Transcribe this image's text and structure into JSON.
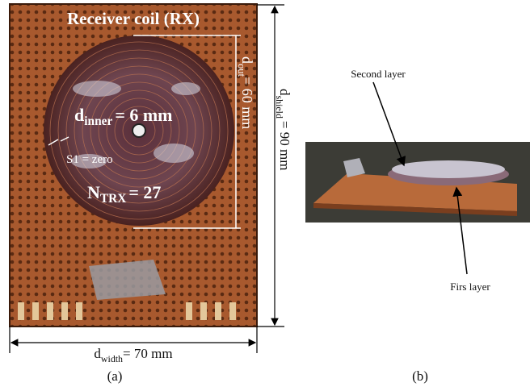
{
  "panel_a": {
    "title": "Receiver coil (RX)",
    "d_inner": {
      "symbol": "d",
      "subscript": "inner",
      "value": "= 6 mm"
    },
    "s1": "S1 = zero",
    "n_trx": {
      "symbol": "N",
      "subscript": "TRX",
      "value": "= 27"
    },
    "d_out": {
      "symbol": "d",
      "subscript": "out",
      "value": "= 60 mm"
    },
    "d_shield": {
      "symbol": "d",
      "subscript": "shield",
      "value": "= 90 mm"
    },
    "d_width": {
      "symbol": "d",
      "subscript": "width",
      "value": "= 70 mm"
    },
    "caption": "(a)"
  },
  "panel_b": {
    "second_layer": "Second layer",
    "first_layer": "Firs layer",
    "caption": "(b)"
  }
}
